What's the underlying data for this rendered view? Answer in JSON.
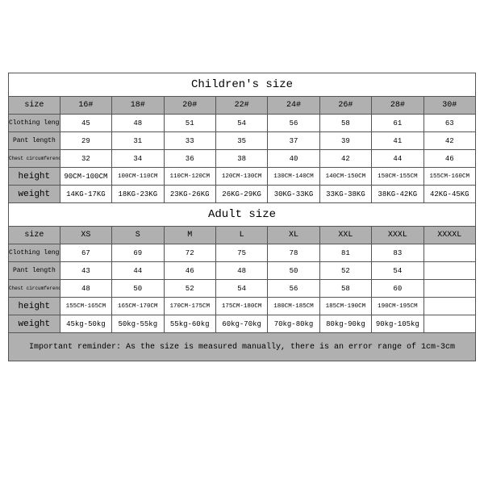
{
  "children": {
    "title": "Children's size",
    "headers": [
      "size",
      "16#",
      "18#",
      "20#",
      "22#",
      "24#",
      "26#",
      "28#",
      "30#"
    ],
    "rows": [
      {
        "label": "Clothing length",
        "label_small": true,
        "vals": [
          "45",
          "48",
          "51",
          "54",
          "56",
          "58",
          "61",
          "63"
        ]
      },
      {
        "label": "Pant length",
        "label_small": true,
        "vals": [
          "29",
          "31",
          "33",
          "35",
          "37",
          "39",
          "41",
          "42"
        ]
      },
      {
        "label": "Chest circumference 1/2",
        "label_small": true,
        "vals": [
          "32",
          "34",
          "36",
          "38",
          "40",
          "42",
          "44",
          "46"
        ]
      },
      {
        "label": "height",
        "label_small": false,
        "vals": [
          "90CM-100CM",
          "100CM-110CM",
          "110CM-120CM",
          "120CM-130CM",
          "130CM-140CM",
          "140CM-150CM",
          "150CM-155CM",
          "155CM-160CM"
        ]
      },
      {
        "label": "weight",
        "label_small": false,
        "vals": [
          "14KG-17KG",
          "18KG-23KG",
          "23KG-26KG",
          "26KG-29KG",
          "30KG-33KG",
          "33KG-38KG",
          "38KG-42KG",
          "42KG-45KG"
        ]
      }
    ]
  },
  "adult": {
    "title": "Adult size",
    "headers": [
      "size",
      "XS",
      "S",
      "M",
      "L",
      "XL",
      "XXL",
      "XXXL",
      "XXXXL"
    ],
    "rows": [
      {
        "label": "Clothing length",
        "label_small": true,
        "vals": [
          "67",
          "69",
          "72",
          "75",
          "78",
          "81",
          "83",
          ""
        ]
      },
      {
        "label": "Pant length",
        "label_small": true,
        "vals": [
          "43",
          "44",
          "46",
          "48",
          "50",
          "52",
          "54",
          ""
        ]
      },
      {
        "label": "Chest circumference 1/2",
        "label_small": true,
        "vals": [
          "48",
          "50",
          "52",
          "54",
          "56",
          "58",
          "60",
          ""
        ]
      },
      {
        "label": "height",
        "label_small": false,
        "vals": [
          "155CM-165CM",
          "165CM-170CM",
          "170CM-175CM",
          "175CM-180CM",
          "180CM-185CM",
          "185CM-190CM",
          "190CM-195CM",
          ""
        ]
      },
      {
        "label": "weight",
        "label_small": false,
        "vals": [
          "45kg-50kg",
          "50kg-55kg",
          "55kg-60kg",
          "60kg-70kg",
          "70kg-80kg",
          "80kg-90kg",
          "90kg-105kg",
          ""
        ]
      }
    ]
  },
  "reminder": "Important reminder: As the size is measured manually, there is an error range of 1cm-3cm",
  "style": {
    "header_bg": "#b0b0b0",
    "data_bg": "#ffffff",
    "border_color": "#555555",
    "font_family": "Courier New"
  }
}
